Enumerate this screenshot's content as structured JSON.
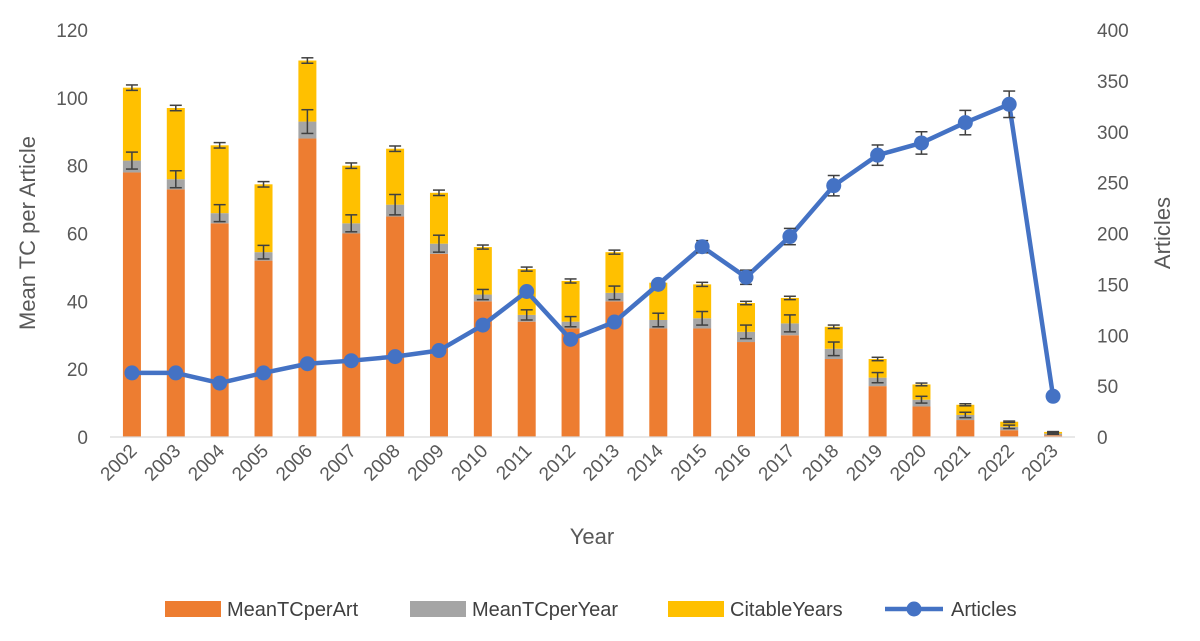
{
  "chart_data": {
    "type": "bar",
    "stacked": true,
    "categories": [
      "2002",
      "2003",
      "2004",
      "2005",
      "2006",
      "2007",
      "2008",
      "2009",
      "2010",
      "2011",
      "2012",
      "2013",
      "2014",
      "2015",
      "2016",
      "2017",
      "2018",
      "2019",
      "2020",
      "2021",
      "2022",
      "2023"
    ],
    "series": [
      {
        "name": "MeanTCperArt",
        "axis": "left",
        "type": "bar",
        "color": "#ED7D31",
        "values": [
          78,
          73,
          63,
          52,
          88,
          60,
          65,
          54,
          40,
          34,
          32,
          40,
          32,
          32,
          28,
          30,
          23,
          15,
          9,
          5,
          2,
          0.5
        ]
      },
      {
        "name": "MeanTCperYear",
        "axis": "left",
        "type": "bar",
        "color": "#A5A5A5",
        "values": [
          3.5,
          3,
          3,
          2.5,
          5,
          3,
          3.5,
          3,
          2,
          2,
          2,
          2.5,
          2.5,
          3,
          3,
          3.5,
          3,
          2.5,
          2,
          1.5,
          1,
          0.5
        ],
        "error": [
          2.5,
          2.5,
          2.5,
          2,
          3.5,
          2.5,
          3,
          2.5,
          1.5,
          1.5,
          1.5,
          2,
          2,
          2,
          2,
          2.5,
          2,
          1.5,
          1,
          0.8,
          0.5,
          0.2
        ]
      },
      {
        "name": "CitableYears",
        "axis": "left",
        "type": "bar",
        "color": "#FFC000",
        "values": [
          21.5,
          21,
          20,
          20,
          18,
          17,
          16.5,
          15,
          14,
          13.5,
          12,
          12,
          11,
          10,
          8.5,
          7.5,
          6.5,
          5.5,
          4.5,
          3,
          1.5,
          0.5
        ],
        "error": [
          0.8,
          0.8,
          0.8,
          0.8,
          0.8,
          0.8,
          0.8,
          0.8,
          0.6,
          0.6,
          0.6,
          0.6,
          0.6,
          0.6,
          0.5,
          0.5,
          0.5,
          0.5,
          0.4,
          0.3,
          0.2,
          0.1
        ]
      },
      {
        "name": "Articles",
        "axis": "right",
        "type": "line",
        "color": "#4472C4",
        "values": [
          63,
          63,
          53,
          63,
          72,
          75,
          79,
          85,
          110,
          143,
          96,
          113,
          150,
          187,
          157,
          197,
          247,
          277,
          289,
          309,
          327,
          40
        ],
        "error": [
          0,
          0,
          0,
          0,
          0,
          0,
          0,
          0,
          0,
          0,
          0,
          0,
          0,
          6,
          7,
          8,
          10,
          10,
          11,
          12,
          13,
          0
        ]
      }
    ],
    "xlabel": "Year",
    "ylabel": "Mean TC per Article",
    "y2label": "Articles",
    "ylim": [
      0,
      120
    ],
    "y2lim": [
      0,
      400
    ],
    "yticks": [
      0,
      20,
      40,
      60,
      80,
      100,
      120
    ],
    "y2ticks": [
      0,
      50,
      100,
      150,
      200,
      250,
      300,
      350,
      400
    ],
    "grid": false,
    "legend_position": "bottom"
  }
}
